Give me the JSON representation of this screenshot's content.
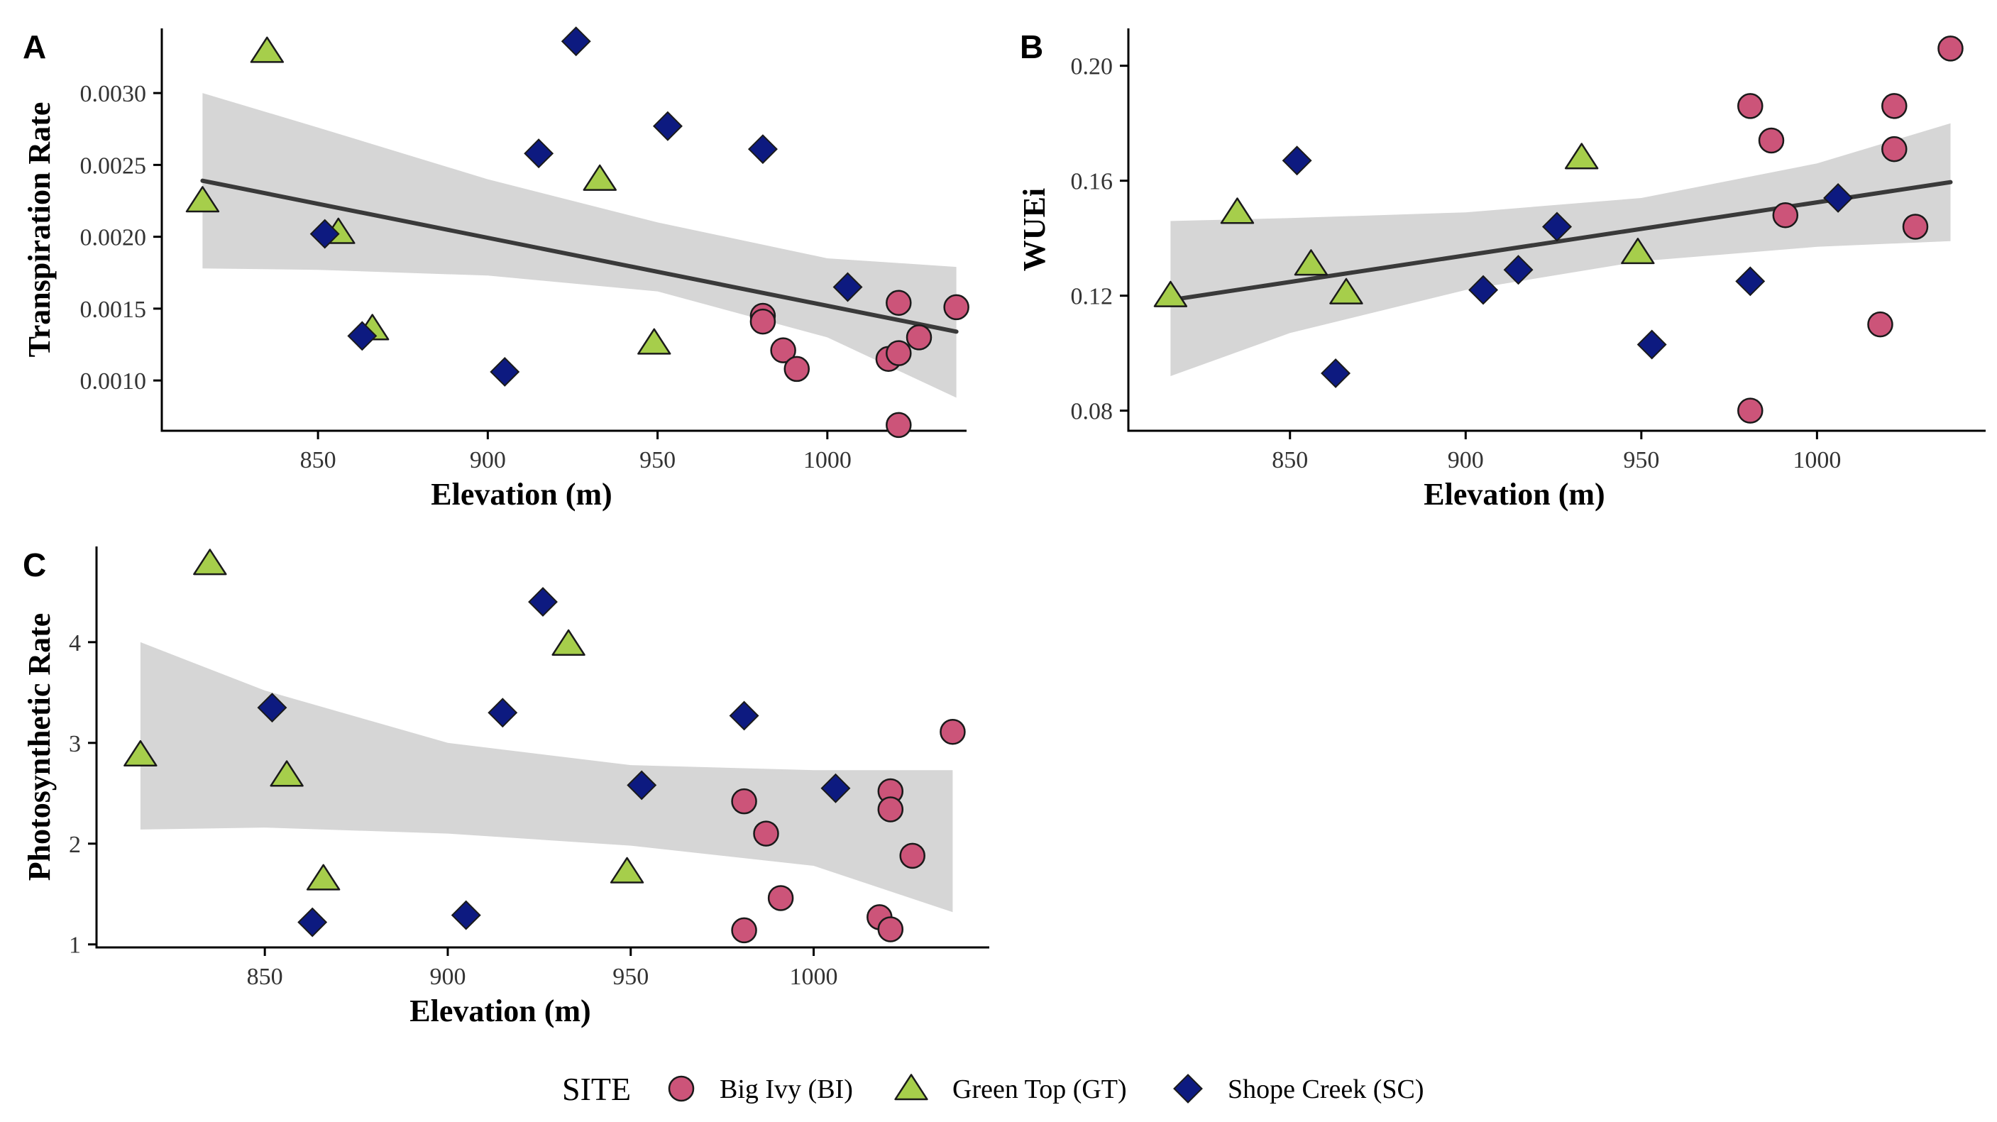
{
  "colors": {
    "BI": "#CC5479",
    "GT": "#A6CE4B",
    "SC": "#0D1A80",
    "band": "#D6D6D6",
    "fit": "#3A3A3A",
    "outline": "#1A1A1A"
  },
  "legend": {
    "title": "SITE",
    "items": [
      {
        "key": "BI",
        "label": "Big Ivy (BI)",
        "shape": "circle"
      },
      {
        "key": "GT",
        "label": "Green Top (GT)",
        "shape": "triangle"
      },
      {
        "key": "SC",
        "label": "Shope Creek (SC)",
        "shape": "diamond"
      }
    ]
  },
  "chart_data": [
    {
      "panel": "A",
      "type": "scatter",
      "xlabel": "Elevation (m)",
      "ylabel": "Transpiration Rate",
      "xlim": [
        804,
        1041
      ],
      "ylim": [
        0.00065,
        0.00345
      ],
      "xticks": [
        850,
        900,
        950,
        1000
      ],
      "xtick_labels": [
        "850",
        "900",
        "950",
        "1000"
      ],
      "yticks": [
        0.001,
        0.0015,
        0.002,
        0.0025,
        0.003
      ],
      "ytick_labels": [
        "0.0010",
        "0.0015",
        "0.0020",
        "0.0025",
        "0.0030"
      ],
      "fit": {
        "x": [
          816,
          1038
        ],
        "y": [
          0.00239,
          0.00134
        ]
      },
      "band": {
        "x": [
          816,
          850,
          900,
          950,
          1000,
          1038
        ],
        "lower": [
          0.00178,
          0.00177,
          0.00173,
          0.00162,
          0.0013,
          0.00088
        ],
        "upper": [
          0.003,
          0.00276,
          0.0024,
          0.0021,
          0.00185,
          0.00179
        ]
      },
      "series": [
        {
          "key": "BI",
          "x": [
            981,
            981,
            987,
            991,
            1018,
            1021,
            1021,
            1021,
            1027,
            1038
          ],
          "y": [
            0.00145,
            0.00141,
            0.00121,
            0.00108,
            0.00115,
            0.00119,
            0.00154,
            0.00069,
            0.0013,
            0.00151
          ]
        },
        {
          "key": "GT",
          "x": [
            816,
            835,
            856,
            866,
            933,
            949
          ],
          "y": [
            0.00225,
            0.00329,
            0.00203,
            0.00136,
            0.0024,
            0.00126
          ]
        },
        {
          "key": "SC",
          "x": [
            852,
            863,
            905,
            915,
            926,
            953,
            981,
            1006
          ],
          "y": [
            0.00202,
            0.00131,
            0.00106,
            0.00258,
            0.00336,
            0.00277,
            0.00261,
            0.00165
          ]
        }
      ]
    },
    {
      "panel": "B",
      "type": "scatter",
      "xlabel": "Elevation (m)",
      "ylabel": "WUEi",
      "xlim": [
        804,
        1048
      ],
      "ylim": [
        0.073,
        0.213
      ],
      "xticks": [
        850,
        900,
        950,
        1000
      ],
      "xtick_labels": [
        "850",
        "900",
        "950",
        "1000"
      ],
      "yticks": [
        0.08,
        0.12,
        0.16,
        0.2
      ],
      "ytick_labels": [
        "0.08",
        "0.12",
        "0.16",
        "0.20"
      ],
      "fit": {
        "x": [
          816,
          1038
        ],
        "y": [
          0.1185,
          0.1595
        ]
      },
      "band": {
        "x": [
          816,
          850,
          900,
          950,
          1000,
          1038
        ],
        "lower": [
          0.092,
          0.107,
          0.122,
          0.132,
          0.137,
          0.139
        ],
        "upper": [
          0.146,
          0.147,
          0.149,
          0.154,
          0.166,
          0.18
        ]
      },
      "series": [
        {
          "key": "BI",
          "x": [
            981,
            987,
            991,
            1018,
            1022,
            1022,
            1028,
            1038,
            981
          ],
          "y": [
            0.186,
            0.174,
            0.148,
            0.11,
            0.186,
            0.171,
            0.144,
            0.206,
            0.08
          ]
        },
        {
          "key": "GT",
          "x": [
            816,
            835,
            856,
            866,
            933,
            949
          ],
          "y": [
            0.12,
            0.149,
            0.131,
            0.121,
            0.168,
            0.135
          ]
        },
        {
          "key": "SC",
          "x": [
            852,
            863,
            905,
            915,
            926,
            953,
            981,
            1006
          ],
          "y": [
            0.167,
            0.093,
            0.122,
            0.129,
            0.144,
            0.103,
            0.125,
            0.154
          ]
        }
      ]
    },
    {
      "panel": "C",
      "type": "scatter",
      "xlabel": "Elevation (m)",
      "ylabel": "Photosynthetic Rate",
      "xlim": [
        804,
        1048
      ],
      "ylim": [
        0.97,
        4.95
      ],
      "xticks": [
        850,
        900,
        950,
        1000
      ],
      "xtick_labels": [
        "850",
        "900",
        "950",
        "1000"
      ],
      "yticks": [
        1,
        2,
        3,
        4
      ],
      "ytick_labels": [
        "1",
        "2",
        "3",
        "4"
      ],
      "fit": null,
      "band": {
        "x": [
          816,
          850,
          900,
          950,
          1000,
          1038
        ],
        "lower": [
          2.14,
          2.16,
          2.1,
          1.98,
          1.78,
          1.32
        ],
        "upper": [
          4.0,
          3.52,
          3.0,
          2.78,
          2.73,
          2.73
        ]
      },
      "series": [
        {
          "key": "BI",
          "x": [
            981,
            987,
            991,
            1018,
            1021,
            1021,
            1021,
            1027,
            1038,
            981
          ],
          "y": [
            2.42,
            2.1,
            1.46,
            1.27,
            2.52,
            2.34,
            1.15,
            1.88,
            3.11,
            1.14
          ]
        },
        {
          "key": "GT",
          "x": [
            816,
            835,
            856,
            866,
            933,
            949
          ],
          "y": [
            2.88,
            4.78,
            2.68,
            1.65,
            3.98,
            1.72
          ]
        },
        {
          "key": "SC",
          "x": [
            852,
            863,
            905,
            915,
            926,
            953,
            981,
            1006
          ],
          "y": [
            3.35,
            1.22,
            1.29,
            3.3,
            4.4,
            2.58,
            3.27,
            2.55
          ]
        }
      ]
    }
  ]
}
